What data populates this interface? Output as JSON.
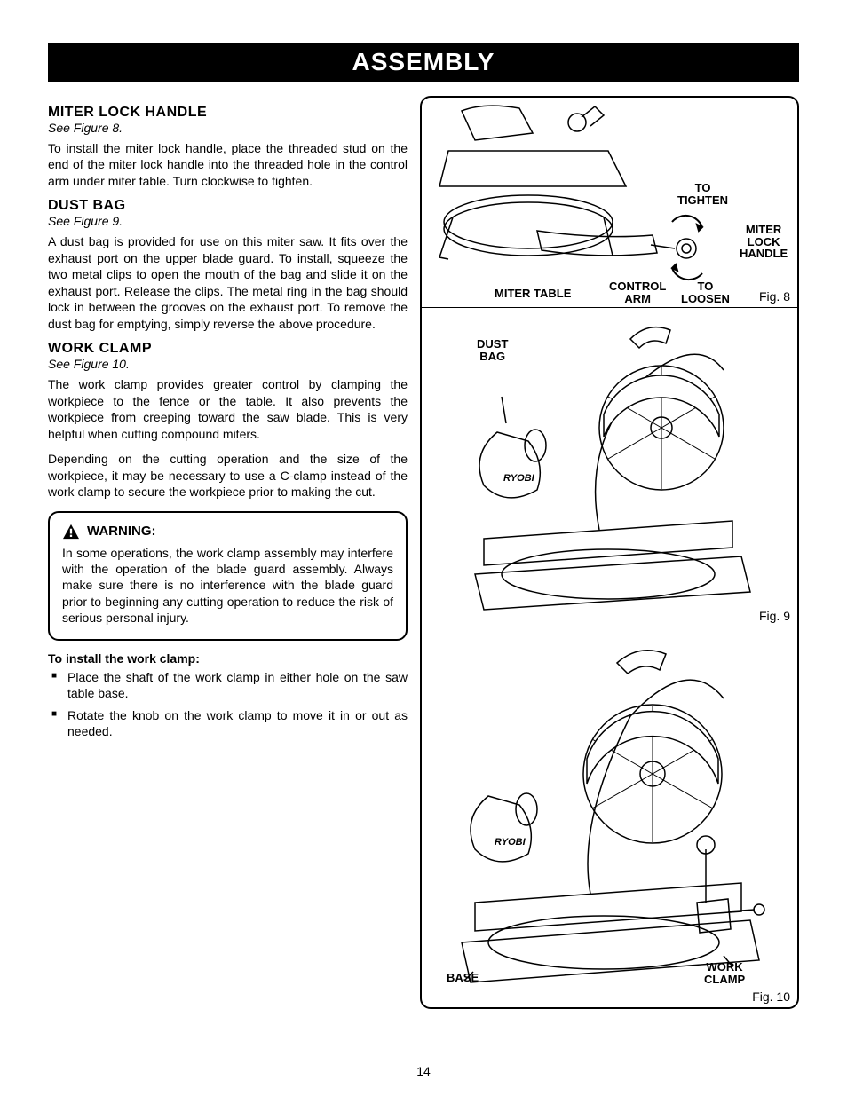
{
  "header": "ASSEMBLY",
  "page_number": "14",
  "sections": [
    {
      "title": "MITER LOCK HANDLE",
      "see": "See Figure 8.",
      "body": [
        "To install the miter lock handle, place the threaded stud on the end of the miter lock handle into the threaded hole in the control arm under miter table. Turn clockwise to tighten."
      ]
    },
    {
      "title": "DUST BAG",
      "see": "See Figure 9.",
      "body": [
        "A dust bag is provided for use on this miter saw. It fits over the exhaust port on the upper blade guard. To install, squeeze the two metal clips to open the mouth of the bag and slide it on the exhaust port. Release the clips. The metal ring in the bag should lock in between the grooves on the exhaust port. To remove the dust bag for emptying, simply reverse the above procedure."
      ]
    },
    {
      "title": "WORK CLAMP",
      "see": "See Figure 10.",
      "body": [
        "The work clamp provides greater control by clamping the workpiece to the fence or the table. It also prevents the workpiece from creeping toward the saw blade. This is very helpful when cutting compound miters.",
        "Depending on the cutting operation and the size of the workpiece, it may be necessary to use a C-clamp instead of the work clamp to secure the workpiece prior to making the cut."
      ]
    }
  ],
  "warning": {
    "title": "WARNING:",
    "text": "In some operations, the work clamp assembly may interfere with the operation of the blade guard assembly. Always make sure there is no interference with the blade guard prior to beginning any cutting operation to reduce the risk of serious personal injury."
  },
  "install": {
    "title": "To install the work clamp:",
    "items": [
      "Place the shaft of the work clamp in either hole on the saw table base.",
      "Rotate the knob on the work clamp to move it in or out as needed."
    ]
  },
  "figures": {
    "fig8": {
      "caption": "Fig. 8",
      "callouts": {
        "to_tighten": "TO\nTIGHTEN",
        "miter_lock_handle": "MITER\nLOCK\nHANDLE",
        "to_loosen": "TO\nLOOSEN",
        "control_arm": "CONTROL\nARM",
        "miter_table": "MITER TABLE"
      }
    },
    "fig9": {
      "caption": "Fig. 9",
      "callouts": {
        "dust_bag": "DUST\nBAG"
      }
    },
    "fig10": {
      "caption": "Fig. 10",
      "callouts": {
        "base": "BASE",
        "work_clamp": "WORK\nCLAMP"
      }
    }
  }
}
